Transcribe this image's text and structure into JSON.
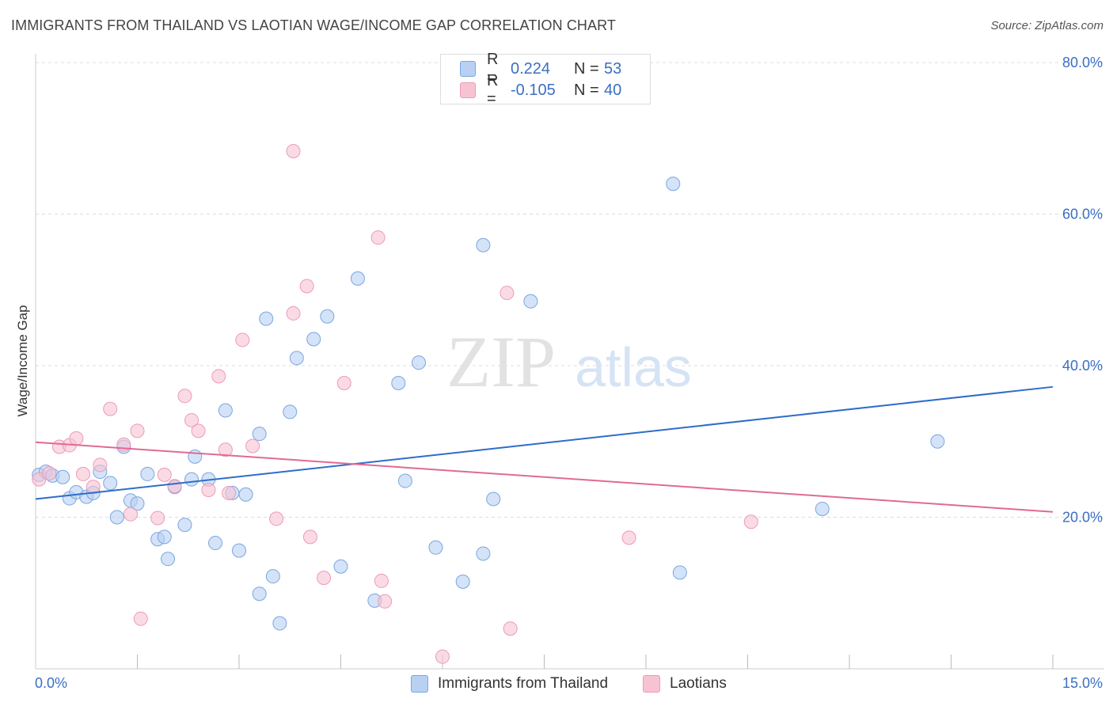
{
  "title": "IMMIGRANTS FROM THAILAND VS LAOTIAN WAGE/INCOME GAP CORRELATION CHART",
  "source": "Source: ZipAtlas.com",
  "watermark": {
    "zip": "ZIP",
    "atlas": "atlas"
  },
  "legend": {
    "r_label": "R =",
    "n_label": "N =",
    "rows": [
      {
        "r": "0.224",
        "n": "53"
      },
      {
        "r": "-0.105",
        "n": "40"
      }
    ]
  },
  "colors": {
    "thailand_fill": "#b8d0f2",
    "thailand_stroke": "#7aa6e2",
    "thailand_line": "#2f6cc9",
    "laotian_fill": "#f7c3d3",
    "laotian_stroke": "#ee9ab5",
    "laotian_line": "#e06a93",
    "tick_label": "#3a6fc4",
    "grid": "#dcdcdc"
  },
  "chart_data": {
    "type": "scatter",
    "title": "IMMIGRANTS FROM THAILAND VS LAOTIAN WAGE/INCOME GAP CORRELATION CHART",
    "xlabel": "",
    "ylabel": "Wage/Income Gap",
    "xlim": [
      0,
      15
    ],
    "ylim": [
      0,
      80
    ],
    "x_tick_labels": [
      "0.0%",
      "15.0%"
    ],
    "y_ticks": [
      20,
      40,
      60,
      80
    ],
    "y_tick_labels": [
      "20.0%",
      "40.0%",
      "60.0%",
      "80.0%"
    ],
    "grid": true,
    "legend_position": "top-center",
    "series": [
      {
        "name": "Immigrants from Thailand",
        "r": 0.224,
        "n": 53,
        "trend": {
          "x": [
            0,
            15
          ],
          "y": [
            22.4,
            37.2
          ]
        },
        "points": [
          [
            0.05,
            25.6
          ],
          [
            0.15,
            26.0
          ],
          [
            0.25,
            25.5
          ],
          [
            0.4,
            25.3
          ],
          [
            0.5,
            22.5
          ],
          [
            0.6,
            23.3
          ],
          [
            0.75,
            22.7
          ],
          [
            0.85,
            23.2
          ],
          [
            0.95,
            26.0
          ],
          [
            1.1,
            24.5
          ],
          [
            1.2,
            20.0
          ],
          [
            1.3,
            29.3
          ],
          [
            1.4,
            22.2
          ],
          [
            1.5,
            21.8
          ],
          [
            1.65,
            25.7
          ],
          [
            1.8,
            17.1
          ],
          [
            1.9,
            17.4
          ],
          [
            1.95,
            14.5
          ],
          [
            2.05,
            24.0
          ],
          [
            2.2,
            19.0
          ],
          [
            2.3,
            25.0
          ],
          [
            2.35,
            28.0
          ],
          [
            2.55,
            25.0
          ],
          [
            2.65,
            16.6
          ],
          [
            2.8,
            34.1
          ],
          [
            2.9,
            23.2
          ],
          [
            3.0,
            15.6
          ],
          [
            3.1,
            23.0
          ],
          [
            3.3,
            9.9
          ],
          [
            3.3,
            31.0
          ],
          [
            3.4,
            46.2
          ],
          [
            3.5,
            12.2
          ],
          [
            3.6,
            6.0
          ],
          [
            3.75,
            33.9
          ],
          [
            3.85,
            41.0
          ],
          [
            4.1,
            43.5
          ],
          [
            4.3,
            46.5
          ],
          [
            4.5,
            13.5
          ],
          [
            4.75,
            51.5
          ],
          [
            5.0,
            9.0
          ],
          [
            5.35,
            37.7
          ],
          [
            5.45,
            24.8
          ],
          [
            5.65,
            40.4
          ],
          [
            5.9,
            16.0
          ],
          [
            6.3,
            11.5
          ],
          [
            6.6,
            55.9
          ],
          [
            6.6,
            15.2
          ],
          [
            6.75,
            22.4
          ],
          [
            7.3,
            48.5
          ],
          [
            9.4,
            64.0
          ],
          [
            9.5,
            12.7
          ],
          [
            11.6,
            21.1
          ],
          [
            13.3,
            30.0
          ]
        ]
      },
      {
        "name": "Laotians",
        "r": -0.105,
        "n": 40,
        "trend": {
          "x": [
            0,
            15
          ],
          "y": [
            29.9,
            20.7
          ]
        },
        "points": [
          [
            0.05,
            25.0
          ],
          [
            0.2,
            25.8
          ],
          [
            0.35,
            29.3
          ],
          [
            0.5,
            29.5
          ],
          [
            0.6,
            30.4
          ],
          [
            0.7,
            25.7
          ],
          [
            0.85,
            24.0
          ],
          [
            0.95,
            26.9
          ],
          [
            1.1,
            34.3
          ],
          [
            1.3,
            29.6
          ],
          [
            1.4,
            20.4
          ],
          [
            1.5,
            31.4
          ],
          [
            1.55,
            6.6
          ],
          [
            1.8,
            19.9
          ],
          [
            1.9,
            25.6
          ],
          [
            2.05,
            24.1
          ],
          [
            2.2,
            36.0
          ],
          [
            2.3,
            32.8
          ],
          [
            2.4,
            31.4
          ],
          [
            2.55,
            23.6
          ],
          [
            2.7,
            38.6
          ],
          [
            2.8,
            28.9
          ],
          [
            2.85,
            23.2
          ],
          [
            3.05,
            43.4
          ],
          [
            3.2,
            29.4
          ],
          [
            3.55,
            19.8
          ],
          [
            3.8,
            46.9
          ],
          [
            3.8,
            68.3
          ],
          [
            4.0,
            50.5
          ],
          [
            4.05,
            17.4
          ],
          [
            4.25,
            12.0
          ],
          [
            4.55,
            37.7
          ],
          [
            5.05,
            56.9
          ],
          [
            5.1,
            11.6
          ],
          [
            5.15,
            8.9
          ],
          [
            6.0,
            1.6
          ],
          [
            6.95,
            49.6
          ],
          [
            7.0,
            5.3
          ],
          [
            8.75,
            17.3
          ],
          [
            10.55,
            19.4
          ]
        ]
      }
    ]
  }
}
